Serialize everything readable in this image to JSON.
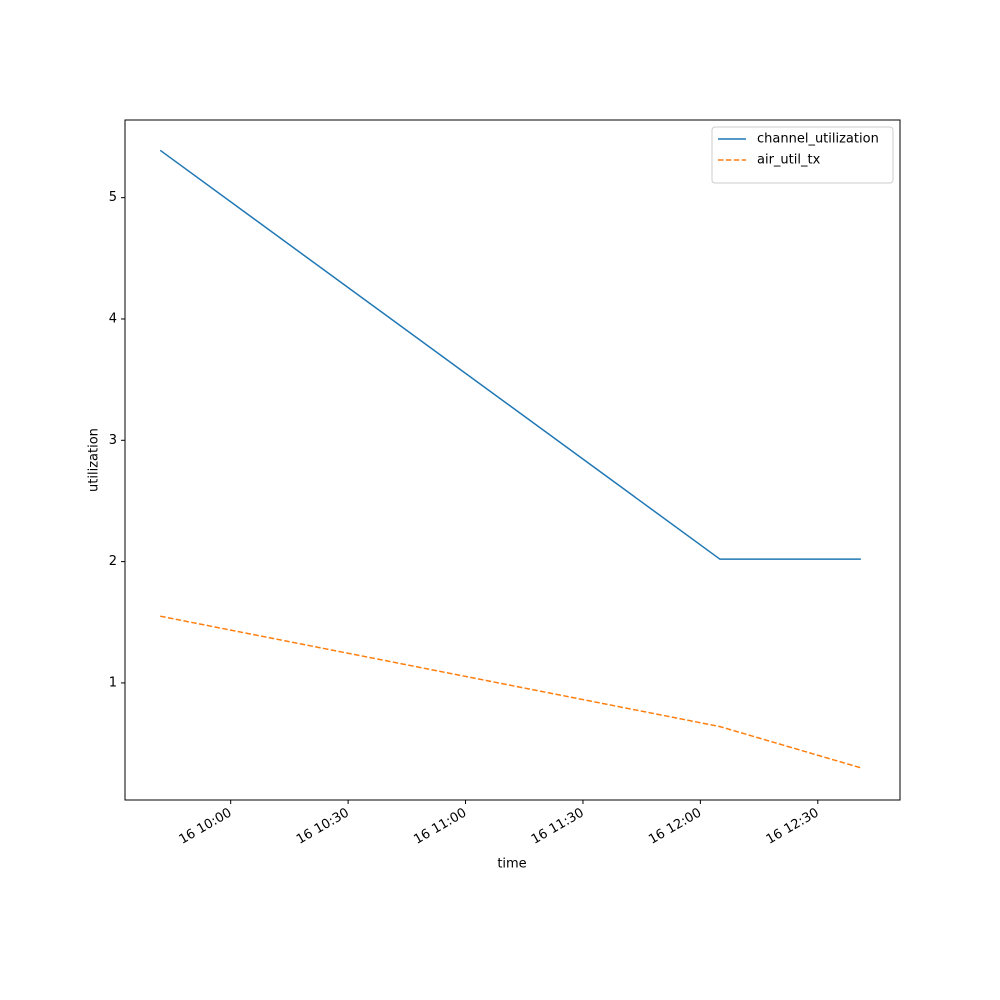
{
  "chart_data": {
    "type": "line",
    "x": [
      "16 09:42",
      "16 12:05",
      "16 12:41"
    ],
    "series": [
      {
        "name": "channel_utilization",
        "color": "#1f77b4",
        "dash": "solid",
        "values": [
          5.39,
          2.02,
          2.02
        ]
      },
      {
        "name": "air_util_tx",
        "color": "#ff7f0e",
        "dash": "dashed",
        "values": [
          1.55,
          0.64,
          0.3
        ]
      }
    ],
    "xlabel": "time",
    "ylabel": "utilization",
    "xlim": [
      "16 09:33",
      "16 12:51"
    ],
    "xticks": [
      "16 10:00",
      "16 10:30",
      "16 11:00",
      "16 11:30",
      "16 12:00",
      "16 12:30"
    ],
    "ylim": [
      0.035,
      5.64
    ],
    "yticks": [
      1,
      2,
      3,
      4,
      5
    ],
    "legend": "upper right",
    "grid": false
  }
}
